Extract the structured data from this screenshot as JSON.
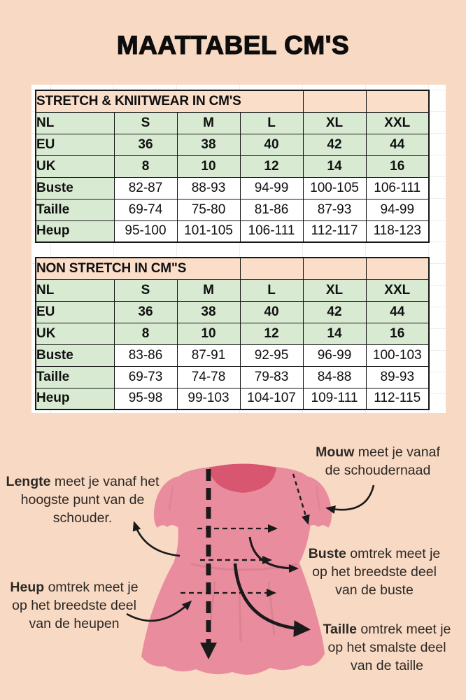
{
  "title": "MAATTABEL CM'S",
  "tables": [
    {
      "header": "STRETCH & KNIITWEAR IN CM'S",
      "header_span": 4,
      "size_rows": [
        {
          "label": "NL",
          "values": [
            "S",
            "M",
            "L",
            "XL",
            "XXL"
          ]
        },
        {
          "label": "EU",
          "values": [
            "36",
            "38",
            "40",
            "42",
            "44"
          ]
        },
        {
          "label": "UK",
          "values": [
            "8",
            "10",
            "12",
            "14",
            "16"
          ]
        }
      ],
      "measure_rows": [
        {
          "label": "Buste",
          "values": [
            "82-87",
            "88-93",
            "94-99",
            "100-105",
            "106-111"
          ]
        },
        {
          "label": "Taille",
          "values": [
            "69-74",
            "75-80",
            "81-86",
            "87-93",
            "94-99"
          ]
        },
        {
          "label": "Heup",
          "values": [
            "95-100",
            "101-105",
            "106-111",
            "112-117",
            "118-123"
          ]
        }
      ]
    },
    {
      "header": "NON STRETCH IN CM\"S",
      "header_span": 3,
      "size_rows": [
        {
          "label": "NL",
          "values": [
            "S",
            "M",
            "L",
            "XL",
            "XXL"
          ]
        },
        {
          "label": "EU",
          "values": [
            "36",
            "38",
            "40",
            "42",
            "44"
          ]
        },
        {
          "label": "UK",
          "values": [
            "8",
            "10",
            "12",
            "14",
            "16"
          ]
        }
      ],
      "measure_rows": [
        {
          "label": "Buste",
          "values": [
            "83-86",
            "87-91",
            "92-95",
            "96-99",
            "100-103"
          ]
        },
        {
          "label": "Taille",
          "values": [
            "69-73",
            "74-78",
            "79-83",
            "84-88",
            "89-93"
          ]
        },
        {
          "label": "Heup",
          "values": [
            "95-98",
            "99-103",
            "104-107",
            "109-111",
            "112-115"
          ]
        }
      ]
    }
  ],
  "annotations": {
    "mouw": {
      "lead": "Mouw",
      "lines": [
        " meet je vanaf",
        "de schoudernaad"
      ]
    },
    "lengte": {
      "lead": "Lengte",
      "lines": [
        " meet je vanaf het",
        "hoogste punt van de",
        "schouder."
      ]
    },
    "buste": {
      "lead": "Buste",
      "lines": [
        " omtrek meet je",
        "op het breedste deel",
        "van de buste"
      ]
    },
    "heup": {
      "lead": "Heup",
      "lines": [
        " omtrek meet je",
        "op het breedste deel",
        "van de heupen"
      ]
    },
    "taille": {
      "lead": "Taille",
      "lines": [
        " omtrek meet je",
        "op het smalste deel",
        "van de taille"
      ]
    }
  },
  "colors": {
    "background": "#f8d9c3",
    "table_header_bg": "#fbdeca",
    "table_size_bg": "#d9ead3",
    "table_value_bg": "#ffffff",
    "table_border": "#161616",
    "dress_pink": "#e98c9e",
    "dress_neckline": "#d8566f",
    "annotation_text": "#2c2824"
  }
}
